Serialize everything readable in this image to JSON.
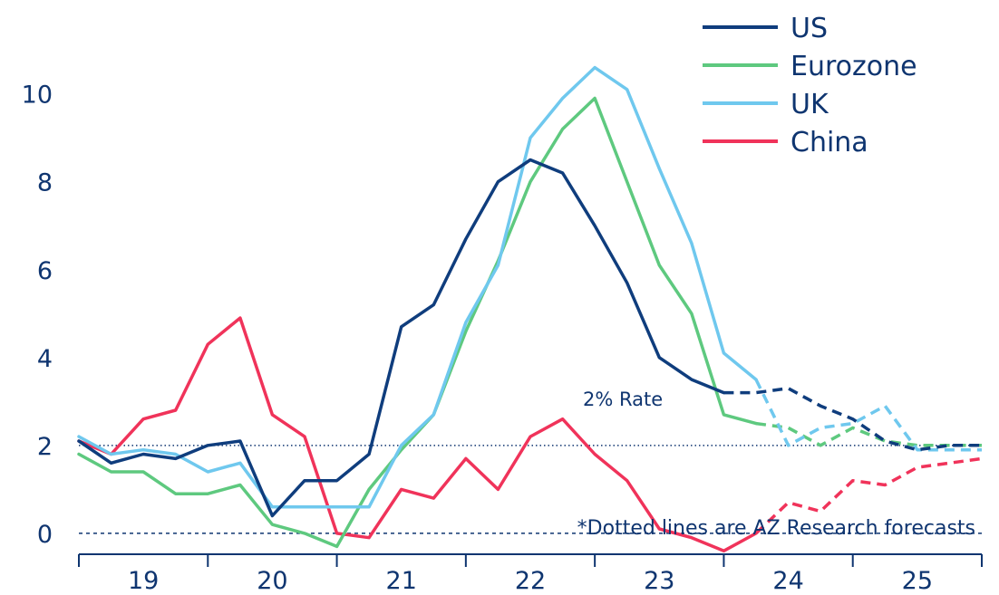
{
  "chart_data": {
    "type": "line",
    "y_ticks": [
      0,
      2,
      4,
      6,
      8,
      10
    ],
    "ylim": [
      -0.6,
      10.9
    ],
    "x_tick_labels": [
      "19",
      "20",
      "21",
      "22",
      "23",
      "24",
      "25"
    ],
    "xlim": [
      2019.0,
      2026.0
    ],
    "annotations": {
      "rate_label": "2% Rate",
      "forecast_note": "*Dotted lines are AZ Research forecasts"
    },
    "reference_lines": [
      {
        "label": "2% Rate",
        "y": 2,
        "style": "dotted"
      },
      {
        "y": 0,
        "style": "dashed"
      }
    ],
    "legend_position": "top-right",
    "series": [
      {
        "name": "US",
        "color": "#0f3d7d",
        "x": [
          2019.0,
          2019.25,
          2019.5,
          2019.75,
          2020.0,
          2020.25,
          2020.5,
          2020.75,
          2021.0,
          2021.25,
          2021.5,
          2021.75,
          2022.0,
          2022.25,
          2022.5,
          2022.75,
          2023.0,
          2023.25,
          2023.5,
          2023.75,
          2024.0,
          2024.25,
          2024.5,
          2024.75,
          2025.0,
          2025.25,
          2025.5,
          2025.75,
          2026.0
        ],
        "y": [
          2.1,
          1.6,
          1.8,
          1.7,
          2.0,
          2.1,
          0.4,
          1.2,
          1.2,
          1.8,
          4.7,
          5.2,
          6.7,
          8.0,
          8.5,
          8.2,
          7.0,
          5.7,
          4.0,
          3.5,
          3.2,
          3.2,
          3.3,
          2.9,
          2.6,
          2.1,
          1.9,
          2.0,
          2.0
        ],
        "forecast_from_index": 20
      },
      {
        "name": "Eurozone",
        "color": "#5ec97f",
        "x": [
          2019.0,
          2019.25,
          2019.5,
          2019.75,
          2020.0,
          2020.25,
          2020.5,
          2020.75,
          2021.0,
          2021.25,
          2021.5,
          2021.75,
          2022.0,
          2022.25,
          2022.5,
          2022.75,
          2023.0,
          2023.25,
          2023.5,
          2023.75,
          2024.0,
          2024.25,
          2024.5,
          2024.75,
          2025.0,
          2025.25,
          2025.5,
          2025.75,
          2026.0
        ],
        "y": [
          1.8,
          1.4,
          1.4,
          0.9,
          0.9,
          1.1,
          0.2,
          0.0,
          -0.3,
          1.0,
          1.9,
          2.7,
          4.6,
          6.2,
          8.0,
          9.2,
          9.9,
          8.0,
          6.1,
          5.0,
          2.7,
          2.5,
          2.4,
          2.0,
          2.4,
          2.1,
          2.0,
          2.0,
          2.0
        ],
        "forecast_from_index": 21
      },
      {
        "name": "UK",
        "color": "#6fc8ee",
        "x": [
          2019.0,
          2019.25,
          2019.5,
          2019.75,
          2020.0,
          2020.25,
          2020.5,
          2020.75,
          2021.0,
          2021.25,
          2021.5,
          2021.75,
          2022.0,
          2022.25,
          2022.5,
          2022.75,
          2023.0,
          2023.25,
          2023.5,
          2023.75,
          2024.0,
          2024.25,
          2024.5,
          2024.75,
          2025.0,
          2025.25,
          2025.5,
          2025.75,
          2026.0
        ],
        "y": [
          2.2,
          1.8,
          1.9,
          1.8,
          1.4,
          1.6,
          0.6,
          0.6,
          0.6,
          0.6,
          2.0,
          2.7,
          4.8,
          6.1,
          9.0,
          9.9,
          10.6,
          10.1,
          8.3,
          6.6,
          4.1,
          3.5,
          2.0,
          2.4,
          2.5,
          2.9,
          1.9,
          1.9,
          1.9
        ],
        "forecast_from_index": 21
      },
      {
        "name": "China",
        "color": "#f0335a",
        "x": [
          2019.0,
          2019.25,
          2019.5,
          2019.75,
          2020.0,
          2020.25,
          2020.5,
          2020.75,
          2021.0,
          2021.25,
          2021.5,
          2021.75,
          2022.0,
          2022.25,
          2022.5,
          2022.75,
          2023.0,
          2023.25,
          2023.5,
          2023.75,
          2024.0,
          2024.25,
          2024.5,
          2024.75,
          2025.0,
          2025.25,
          2025.5,
          2025.75,
          2026.0
        ],
        "y": [
          2.1,
          1.8,
          2.6,
          2.8,
          4.3,
          4.9,
          2.7,
          2.2,
          0.0,
          -0.1,
          1.0,
          0.8,
          1.7,
          1.0,
          2.2,
          2.6,
          1.8,
          1.2,
          0.1,
          -0.1,
          -0.4,
          0.0,
          0.7,
          0.5,
          1.2,
          1.1,
          1.5,
          1.6,
          1.7
        ],
        "forecast_from_index": 21
      }
    ]
  }
}
